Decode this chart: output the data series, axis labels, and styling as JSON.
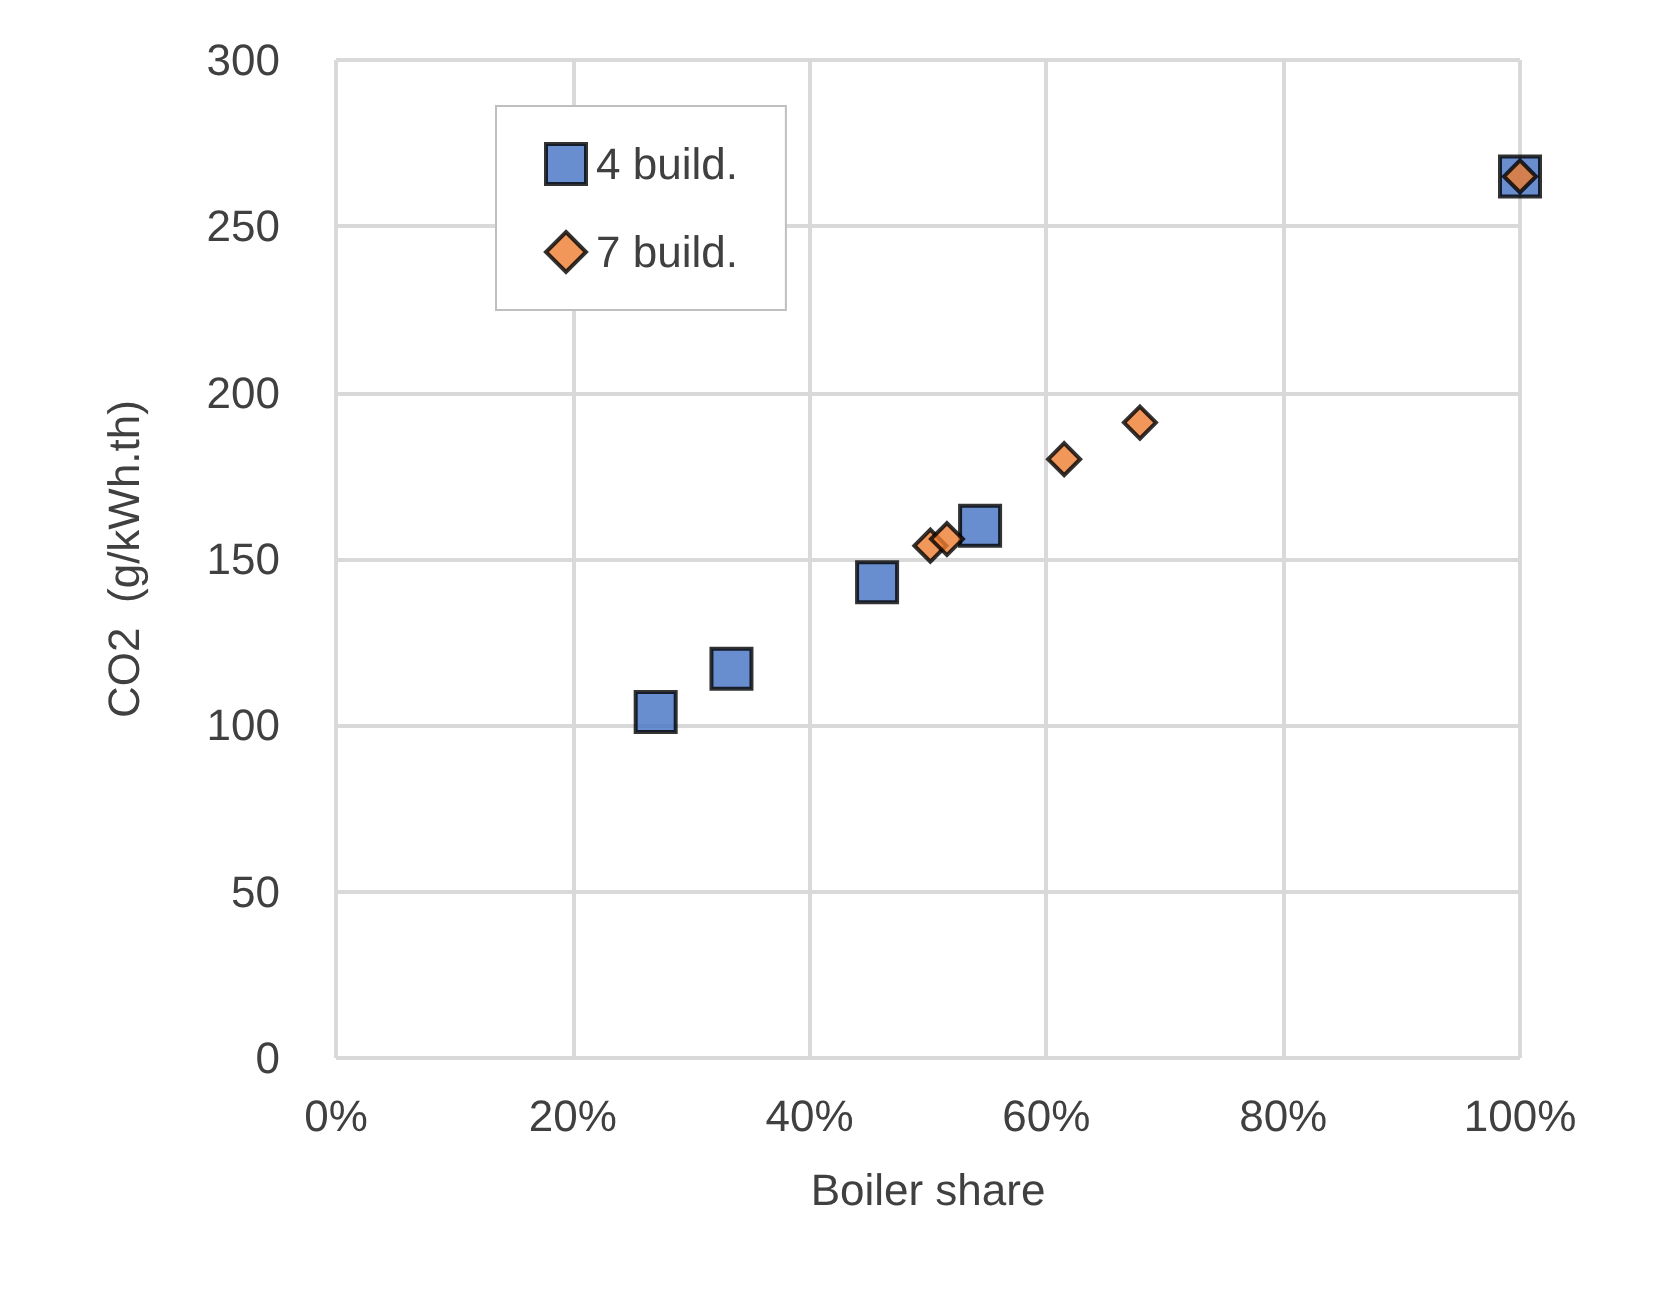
{
  "chart_data": {
    "type": "scatter",
    "xlabel": "Boiler share",
    "ylabel": "CO2  (g/kWh.th)",
    "xlim": [
      0,
      100
    ],
    "xticks": [
      {
        "value": 0,
        "label": "0%"
      },
      {
        "value": 20,
        "label": "20%"
      },
      {
        "value": 40,
        "label": "40%"
      },
      {
        "value": 60,
        "label": "60%"
      },
      {
        "value": 80,
        "label": "80%"
      },
      {
        "value": 100,
        "label": "100%"
      }
    ],
    "ylim": [
      0,
      300
    ],
    "yticks": [
      0,
      50,
      100,
      150,
      200,
      250,
      300
    ],
    "grid": true,
    "legend": "top left",
    "series": [
      {
        "name": "4 build.",
        "color": "#4472c4",
        "marker": "square",
        "x": [
          27,
          33.4,
          45.7,
          54.4,
          100
        ],
        "values": [
          104,
          117,
          143,
          160,
          265
        ]
      },
      {
        "name": "7 build.",
        "color": "#ed7d31",
        "marker": "diamond",
        "x": [
          50.2,
          51.6,
          61.5,
          67.9,
          100
        ],
        "values": [
          154,
          156,
          180,
          191,
          265
        ]
      }
    ]
  }
}
